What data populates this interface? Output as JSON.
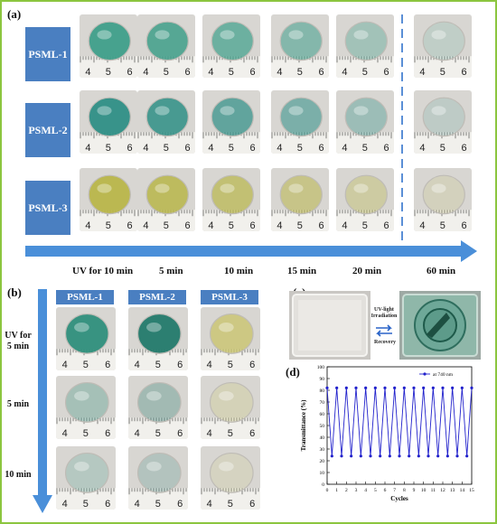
{
  "panel_labels": {
    "a": "(a)",
    "b": "(b)",
    "c": "(c)",
    "d": "(d)"
  },
  "panel_a": {
    "samples": [
      "PSML-1",
      "PSML-2",
      "PSML-3"
    ],
    "times": [
      "UV for 10 min",
      "5 min",
      "10 min",
      "15 min",
      "20 min",
      "60 min"
    ],
    "sample_colors": [
      "#3f9f8a",
      "#2f8f86",
      "#b9b64a"
    ],
    "ruler_numbers": [
      "4",
      "5",
      "6"
    ]
  },
  "panel_b": {
    "samples": [
      "PSML-1",
      "PSML-2",
      "PSML-3"
    ],
    "times": [
      "UV for 5 min",
      "5 min",
      "10 min"
    ],
    "ruler_numbers": [
      "4",
      "5",
      "6"
    ]
  },
  "panel_c": {
    "arrow_text": "UV-light Irradiation",
    "recovery_text": "Recovery"
  },
  "chart_data": {
    "type": "line",
    "xlabel": "Cycles",
    "ylabel": "Transmittance (%)",
    "xlim": [
      0,
      15
    ],
    "ylim": [
      0,
      100
    ],
    "xticks": [
      "0",
      "1",
      "2",
      "3",
      "4",
      "5",
      "6",
      "7",
      "8",
      "9",
      "10",
      "11",
      "12",
      "13",
      "14",
      "15"
    ],
    "yticks": [
      "0",
      "10",
      "20",
      "30",
      "40",
      "50",
      "60",
      "70",
      "80",
      "90",
      "100"
    ],
    "series": [
      {
        "name": "at 740 nm",
        "color": "#2222cc",
        "x": [
          0,
          0.5,
          1,
          1.5,
          2,
          2.5,
          3,
          3.5,
          4,
          4.5,
          5,
          5.5,
          6,
          6.5,
          7,
          7.5,
          8,
          8.5,
          9,
          9.5,
          10,
          10.5,
          11,
          11.5,
          12,
          12.5,
          13,
          13.5,
          14,
          14.5,
          15
        ],
        "y": [
          82,
          24,
          82,
          24,
          82,
          24,
          82,
          24,
          82,
          24,
          82,
          24,
          82,
          24,
          82,
          24,
          82,
          24,
          82,
          24,
          82,
          24,
          82,
          24,
          82,
          24,
          82,
          24,
          82,
          24,
          82
        ]
      }
    ],
    "legend": "top-right"
  }
}
